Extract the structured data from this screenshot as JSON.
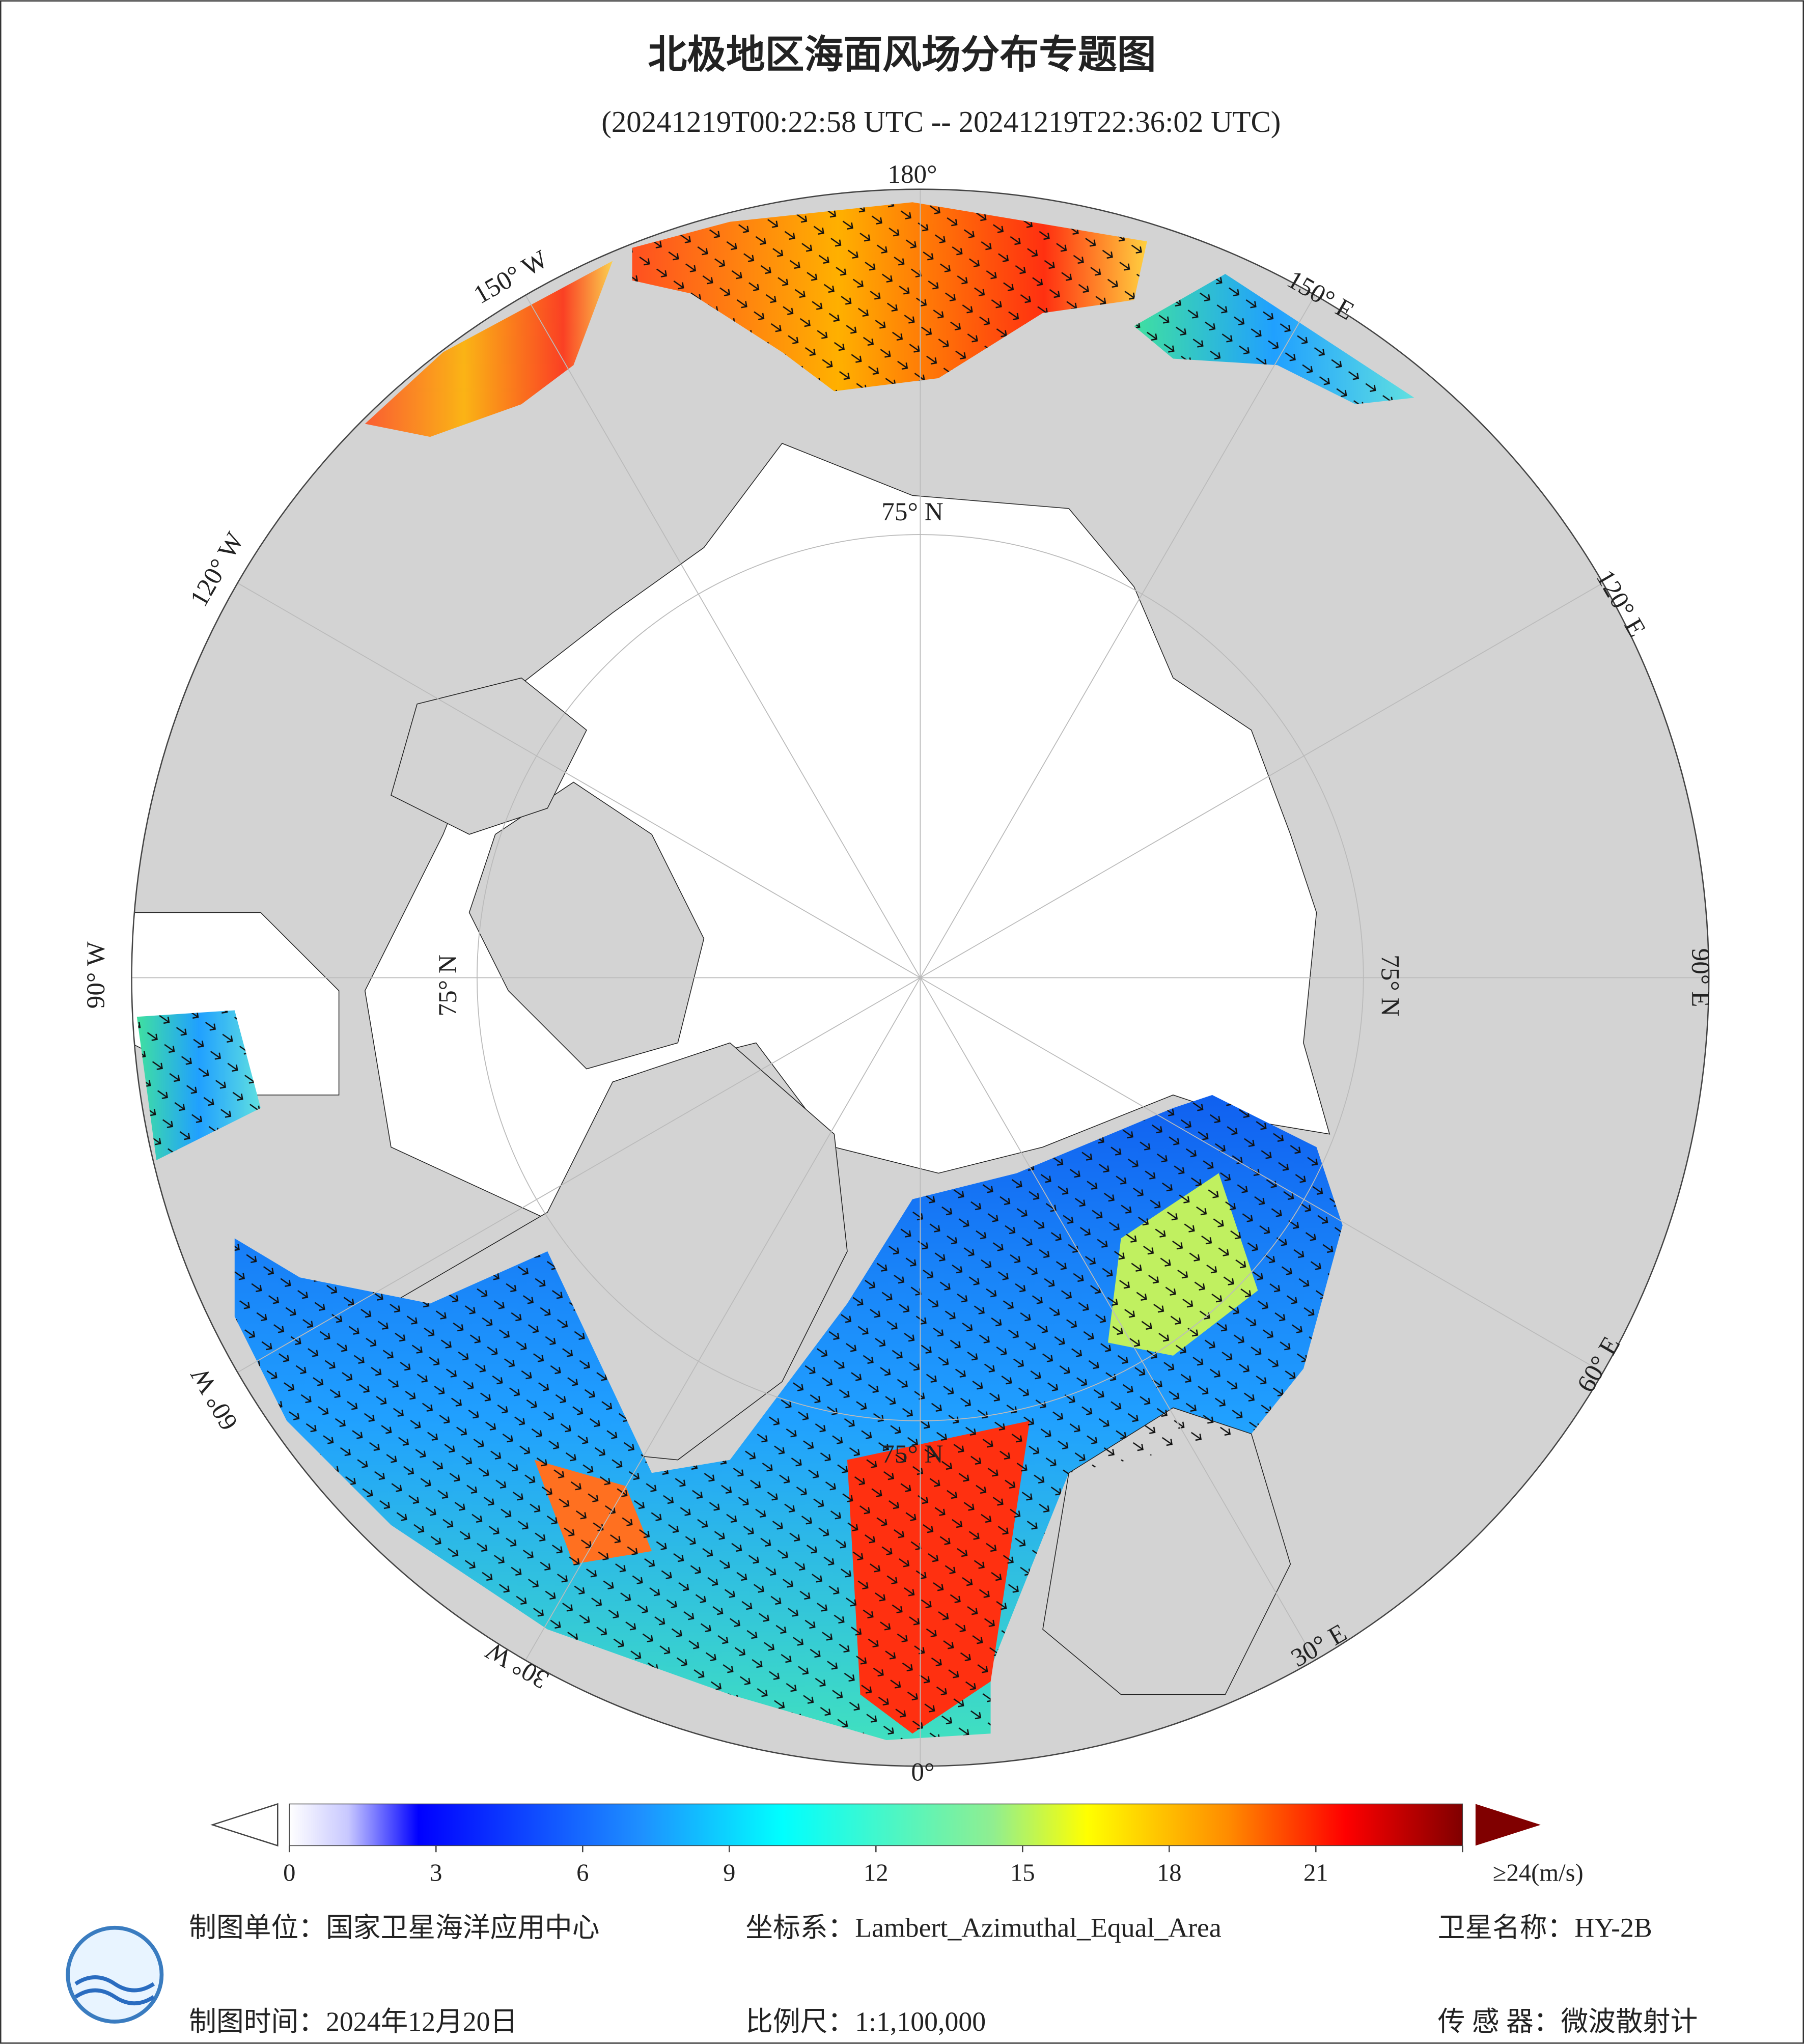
{
  "header": {
    "title": "北极地区海面风场分布专题图",
    "subtitle": "(20241219T00:22:58 UTC -- 20241219T22:36:02 UTC)"
  },
  "map": {
    "lon_labels": [
      "180°",
      "150° E",
      "120° E",
      "90° E",
      "60° E",
      "30° E",
      "0°",
      "30° W",
      "60° W",
      "90° W",
      "120° W",
      "150° W"
    ],
    "lat_label": "75° N"
  },
  "chart_data": {
    "type": "colorbar",
    "lim": [
      0,
      24
    ],
    "ticks": [
      0,
      3,
      6,
      9,
      12,
      15,
      18,
      21,
      {
        "value": 24,
        "label": "≥24(m/s)"
      }
    ]
  },
  "footer": {
    "unit": "制图单位：国家卫星海洋应用中心",
    "crs": "坐标系：Lambert_Azimuthal_Equal_Area",
    "satellite": "卫星名称：HY-2B",
    "date": "制图时间：2024年12月20日",
    "scale": "比例尺：1:1,100,000",
    "sensor": "传 感 器：微波散射计"
  }
}
